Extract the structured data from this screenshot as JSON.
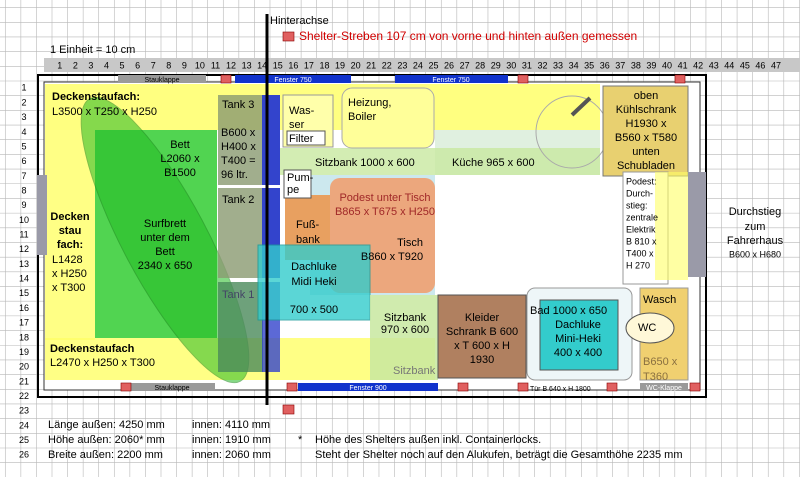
{
  "header": {
    "axle": "Hinterachse",
    "legend": "Shelter-Streben 107 cm von vorne und hinten außen gemessen",
    "scale": "1 Einheit = 10 cm"
  },
  "columns": [
    1,
    2,
    3,
    4,
    5,
    6,
    7,
    8,
    9,
    10,
    11,
    12,
    13,
    14,
    15,
    16,
    17,
    18,
    19,
    20,
    21,
    22,
    23,
    24,
    25,
    26,
    27,
    28,
    29,
    30,
    31,
    32,
    33,
    34,
    35,
    36,
    37,
    38,
    39,
    40,
    41,
    42,
    43,
    44,
    45,
    46,
    47
  ],
  "rows": [
    1,
    2,
    3,
    4,
    5,
    6,
    7,
    8,
    9,
    10,
    11,
    12,
    13,
    14,
    15,
    16,
    17,
    18,
    19,
    20,
    21,
    22,
    23,
    24,
    25,
    26
  ],
  "openings": [
    "Stauklappe",
    "Fenster 750",
    "Fenster 750",
    "Stauklappe",
    "Fenster 900",
    "Tür  B 640 x H 1800",
    "WC-Klappe"
  ],
  "areas": {
    "storage_top": [
      "Deckenstaufach:",
      "L3500 x T250 x H250"
    ],
    "tank3": [
      "Tank 3",
      "B600 x",
      "H400 x",
      "T400 =",
      "96 ltr."
    ],
    "water": [
      "Was-",
      "ser",
      "Filter"
    ],
    "heater": [
      "Heizung,",
      "Boiler"
    ],
    "fridge": [
      "oben",
      "Kühlschrank",
      "H1930 x",
      "B560 x T580",
      "unten",
      "Schubladen"
    ],
    "bed": [
      "Bett",
      "L2060 x",
      "B1500"
    ],
    "bench_kitchen": "Sitzbank 1000 x 600",
    "kitchen": "Küche 965 x 600",
    "pump": [
      "Pum-",
      "pe"
    ],
    "tank2": "Tank 2",
    "entry": [
      "Podest:",
      "Durch-",
      "stieg:",
      "zentrale",
      "Elektrik",
      "B 810 x",
      "T400 x",
      "H 270"
    ],
    "storage_left": [
      "Decken",
      "stau",
      "fach:",
      "L1428",
      "x H250",
      "x T300"
    ],
    "surfboard": [
      "Surfbrett",
      "unter dem",
      "Bett",
      "2340 x 650"
    ],
    "footrest": [
      "Fuß-",
      "bank"
    ],
    "platform": [
      "Podest unter Tisch",
      "B865 x T675 x H250"
    ],
    "table": [
      "Tisch",
      "B860 x T920"
    ],
    "hatch_midi": [
      "Dachluke",
      "Midi Heki",
      "700 x 500"
    ],
    "cab": [
      "Durchstieg",
      "zum",
      "Fahrerhaus",
      "B600 x  H680"
    ],
    "tank1": "Tank 1",
    "bench_rear": [
      "Sitzbank",
      "970 x 600"
    ],
    "wardrobe": [
      "Kleider",
      "Schrank B 600",
      "x T 600 x H",
      "1930"
    ],
    "bath": "Bad 1000 x 650",
    "hatch_mini": [
      "Dachluke",
      "Mini-Heki",
      "400 x 400"
    ],
    "wash": [
      "Wasch",
      "WC",
      "B650 x",
      "T360"
    ],
    "storage_bottom": [
      "Deckenstaufach",
      "L2470 x H250 x T300"
    ],
    "bench_bottom": "Sitzbank"
  },
  "footer": {
    "rows": [
      [
        "Länge außen: 4250 mm",
        "innen: 4110 mm"
      ],
      [
        "Höhe außen: 2060* mm",
        "innen: 1910 mm"
      ],
      [
        "Breite außen: 2200 mm",
        "innen: 2060 mm"
      ]
    ],
    "note": [
      "*",
      "Höhe des Shelters außen inkl. Containerlocks.",
      "Steht der Shelter noch auf den Alukufen, beträgt die Gesamthöhe 2235 mm"
    ]
  }
}
